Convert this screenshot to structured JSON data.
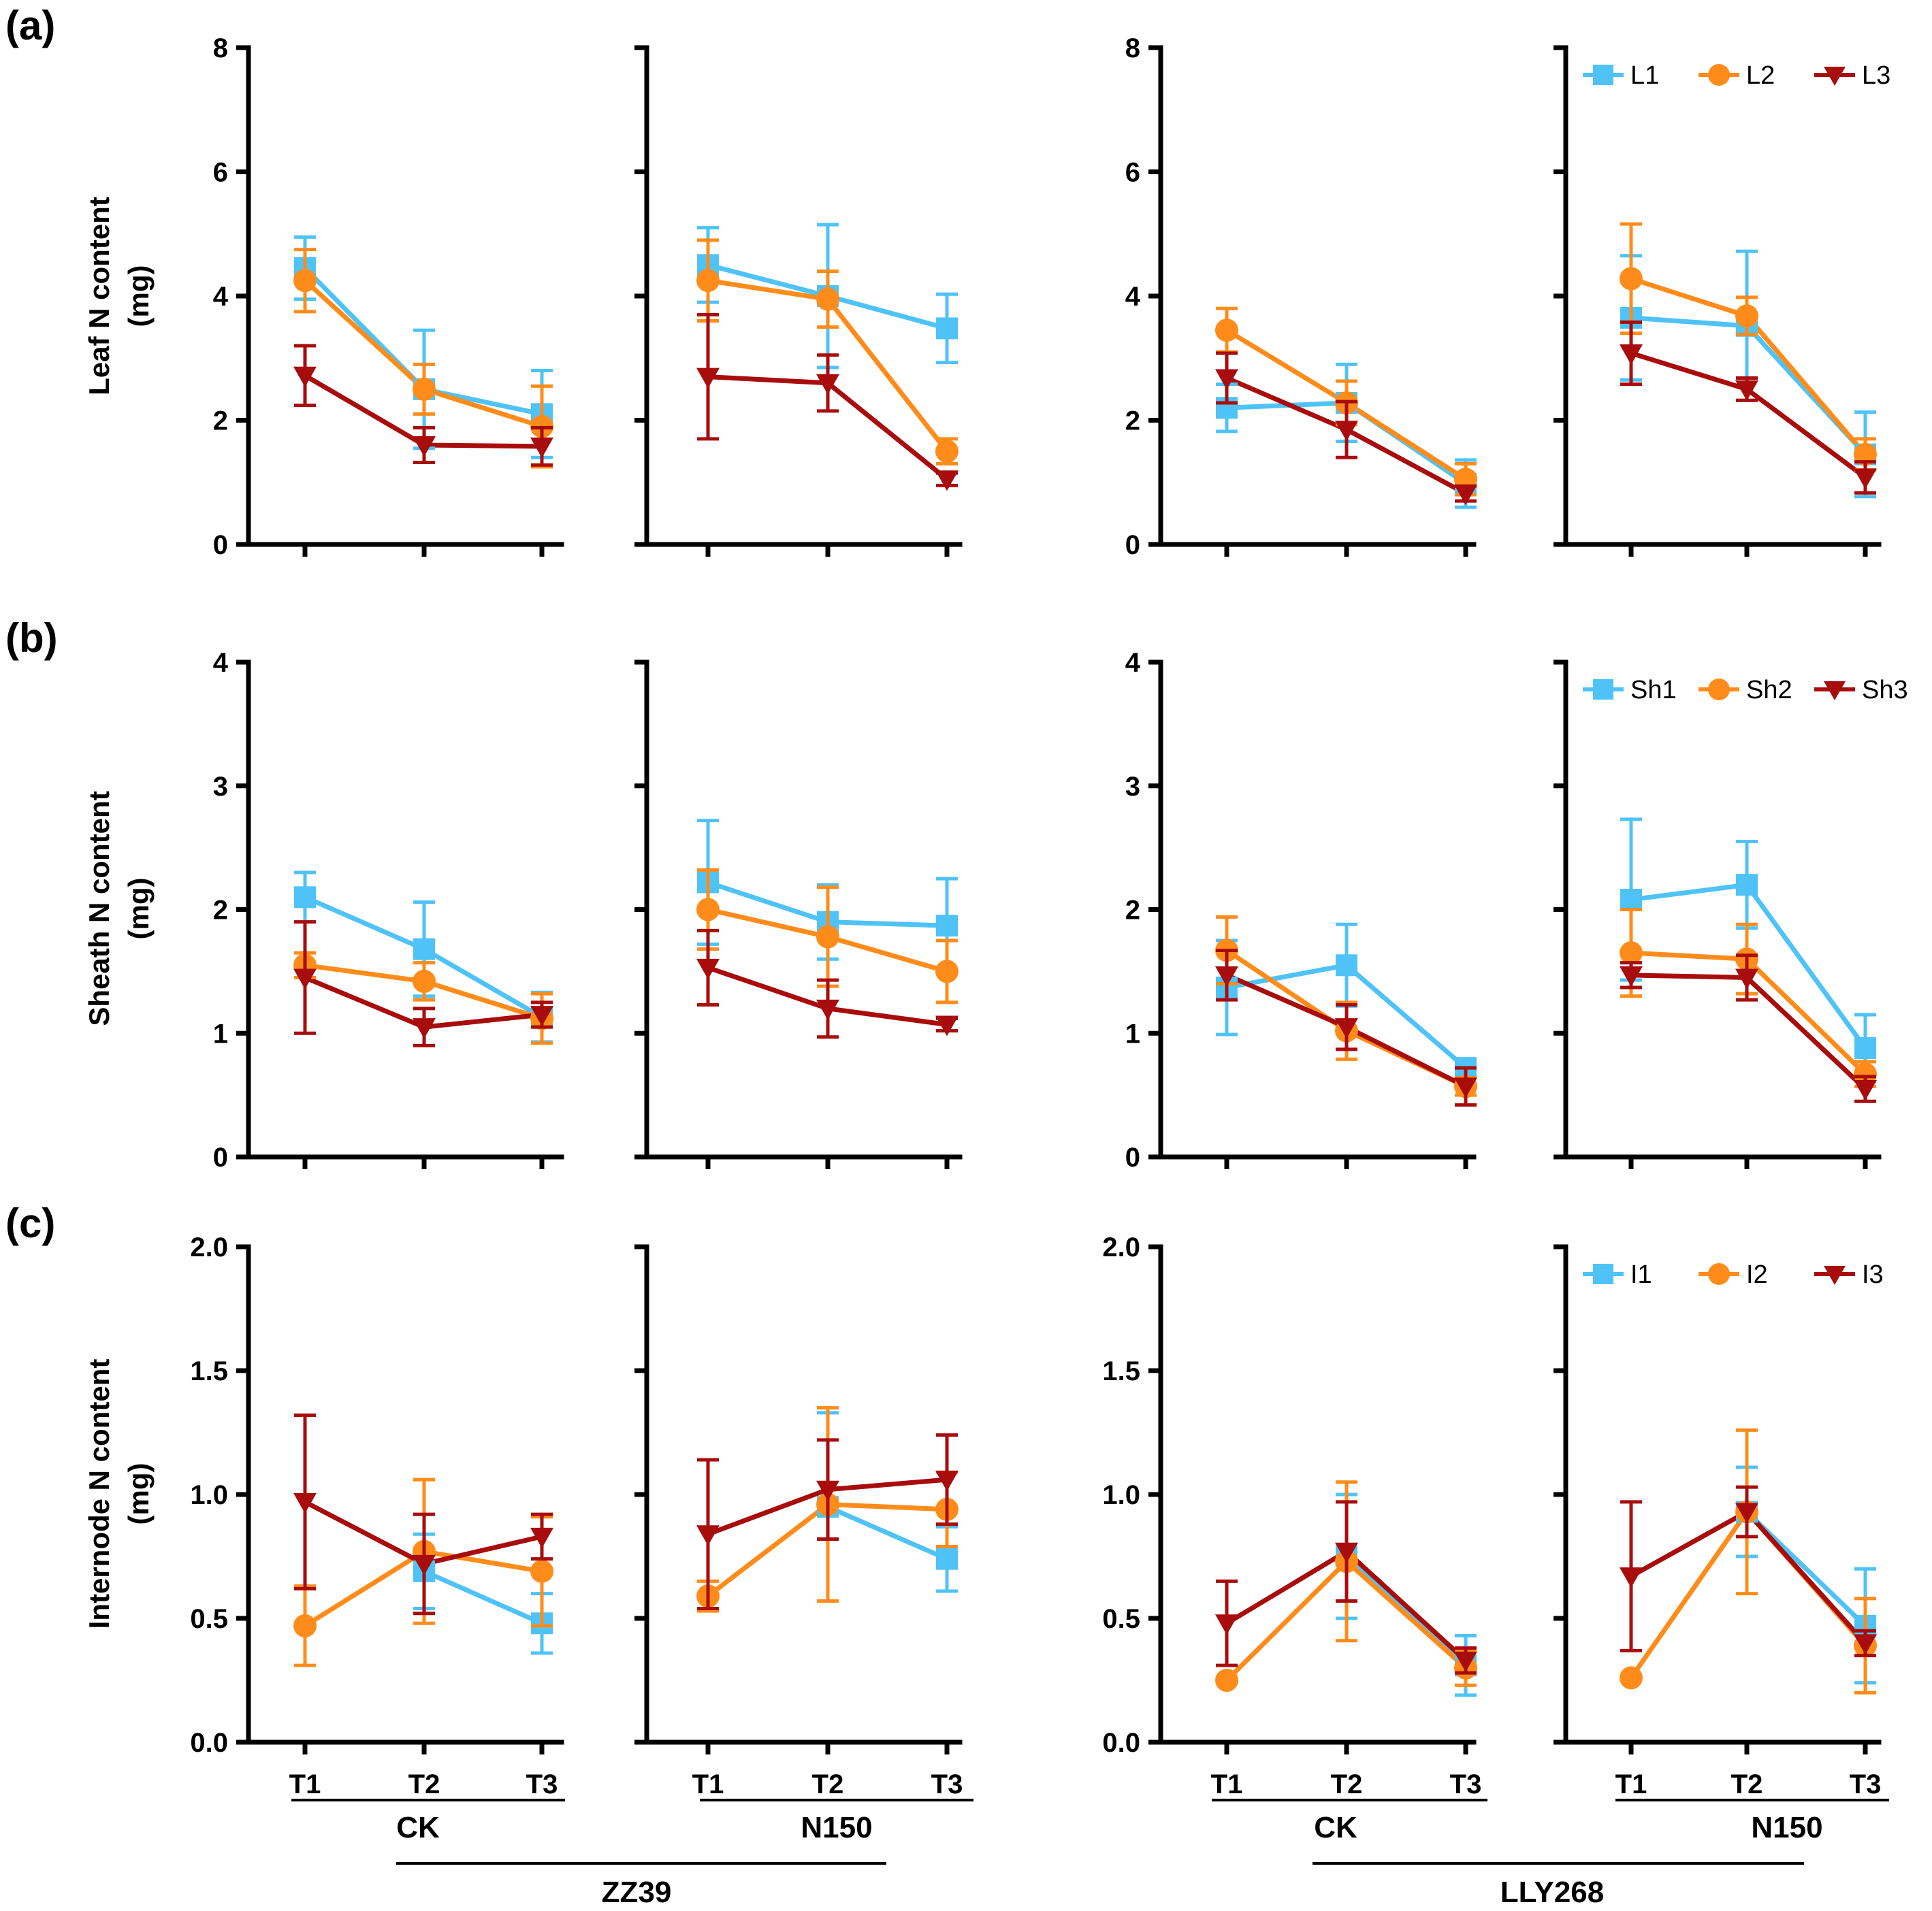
{
  "colors": {
    "s1": "#4FC3F7",
    "s2": "#FF8C1A",
    "s3": "#A80C0C",
    "axis": "#000000"
  },
  "x_categories": [
    "T1",
    "T2",
    "T3"
  ],
  "group_labels": {
    "treatments": [
      "CK",
      "N150",
      "CK",
      "N150"
    ],
    "cultivars": [
      "ZZ39",
      "LLY268"
    ]
  },
  "chart_data": [
    {
      "type": "line",
      "panel": "(a)",
      "ylabel_line1": "Leaf N content",
      "ylabel_line2": "(mg)",
      "ylim": [
        0,
        8
      ],
      "yticks": [
        0,
        2,
        4,
        6,
        8
      ],
      "yticklabels": [
        "0",
        "2",
        "4",
        "6",
        "8"
      ],
      "legend": [
        "L1",
        "L2",
        "L3"
      ],
      "legend_position": "top-right",
      "subplots": [
        {
          "cultivar": "ZZ39",
          "treatment": "CK",
          "series": [
            {
              "name": "L1",
              "values": [
                4.45,
                2.5,
                2.1
              ],
              "errors": [
                0.5,
                0.95,
                0.7
              ]
            },
            {
              "name": "L2",
              "values": [
                4.25,
                2.5,
                1.9
              ],
              "errors": [
                0.5,
                0.4,
                0.65
              ]
            },
            {
              "name": "L3",
              "values": [
                2.72,
                1.6,
                1.58
              ],
              "errors": [
                0.48,
                0.28,
                0.3
              ]
            }
          ]
        },
        {
          "cultivar": "ZZ39",
          "treatment": "N150",
          "series": [
            {
              "name": "L1",
              "values": [
                4.5,
                4.0,
                3.48
              ],
              "errors": [
                0.6,
                1.15,
                0.55
              ]
            },
            {
              "name": "L2",
              "values": [
                4.25,
                3.95,
                1.5
              ],
              "errors": [
                0.65,
                0.45,
                0.2
              ]
            },
            {
              "name": "L3",
              "values": [
                2.7,
                2.6,
                1.05
              ],
              "errors": [
                1.0,
                0.45,
                0.1
              ]
            }
          ]
        },
        {
          "cultivar": "LLY268",
          "treatment": "CK",
          "series": [
            {
              "name": "L1",
              "values": [
                2.2,
                2.28,
                0.98
              ],
              "errors": [
                0.38,
                0.62,
                0.38
              ]
            },
            {
              "name": "L2",
              "values": [
                3.45,
                2.28,
                1.05
              ],
              "errors": [
                0.35,
                0.35,
                0.25
              ]
            },
            {
              "name": "L3",
              "values": [
                2.68,
                1.85,
                0.82
              ],
              "errors": [
                0.4,
                0.45,
                0.12
              ]
            }
          ]
        },
        {
          "cultivar": "LLY268",
          "treatment": "N150",
          "series": [
            {
              "name": "L1",
              "values": [
                3.65,
                3.52,
                1.45
              ],
              "errors": [
                1.0,
                1.2,
                0.68
              ]
            },
            {
              "name": "L2",
              "values": [
                4.28,
                3.68,
                1.45
              ],
              "errors": [
                0.88,
                0.3,
                0.25
              ]
            },
            {
              "name": "L3",
              "values": [
                3.08,
                2.5,
                1.08
              ],
              "errors": [
                0.5,
                0.18,
                0.25
              ]
            }
          ]
        }
      ]
    },
    {
      "type": "line",
      "panel": "(b)",
      "ylabel_line1": "Sheath N content",
      "ylabel_line2": "(mg)",
      "ylim": [
        0,
        4
      ],
      "yticks": [
        0,
        1,
        2,
        3,
        4
      ],
      "yticklabels": [
        "0",
        "1",
        "2",
        "3",
        "4"
      ],
      "legend": [
        "Sh1",
        "Sh2",
        "Sh3"
      ],
      "legend_position": "top-right",
      "subplots": [
        {
          "cultivar": "ZZ39",
          "treatment": "CK",
          "series": [
            {
              "name": "Sh1",
              "values": [
                2.1,
                1.68,
                1.13
              ],
              "errors": [
                0.2,
                0.38,
                0.2
              ]
            },
            {
              "name": "Sh2",
              "values": [
                1.55,
                1.42,
                1.12
              ],
              "errors": [
                0.1,
                0.15,
                0.2
              ]
            },
            {
              "name": "Sh3",
              "values": [
                1.45,
                1.05,
                1.15
              ],
              "errors": [
                0.45,
                0.15,
                0.1
              ]
            }
          ]
        },
        {
          "cultivar": "ZZ39",
          "treatment": "N150",
          "series": [
            {
              "name": "Sh1",
              "values": [
                2.22,
                1.9,
                1.87
              ],
              "errors": [
                0.5,
                0.3,
                0.38
              ]
            },
            {
              "name": "Sh2",
              "values": [
                2.0,
                1.78,
                1.5
              ],
              "errors": [
                0.32,
                0.4,
                0.25
              ]
            },
            {
              "name": "Sh3",
              "values": [
                1.53,
                1.2,
                1.07
              ],
              "errors": [
                0.3,
                0.23,
                0.05
              ]
            }
          ]
        },
        {
          "cultivar": "LLY268",
          "treatment": "CK",
          "series": [
            {
              "name": "Sh1",
              "values": [
                1.37,
                1.55,
                0.72
              ],
              "errors": [
                0.38,
                0.33,
                0.07
              ]
            },
            {
              "name": "Sh2",
              "values": [
                1.67,
                1.02,
                0.57
              ],
              "errors": [
                0.27,
                0.23,
                0.07
              ]
            },
            {
              "name": "Sh3",
              "values": [
                1.47,
                1.05,
                0.57
              ],
              "errors": [
                0.2,
                0.18,
                0.15
              ]
            }
          ]
        },
        {
          "cultivar": "LLY268",
          "treatment": "N150",
          "series": [
            {
              "name": "Sh1",
              "values": [
                2.08,
                2.2,
                0.88
              ],
              "errors": [
                0.65,
                0.35,
                0.27
              ]
            },
            {
              "name": "Sh2",
              "values": [
                1.65,
                1.6,
                0.67
              ],
              "errors": [
                0.35,
                0.28,
                0.1
              ]
            },
            {
              "name": "Sh3",
              "values": [
                1.47,
                1.45,
                0.55
              ],
              "errors": [
                0.1,
                0.18,
                0.1
              ]
            }
          ]
        }
      ]
    },
    {
      "type": "line",
      "panel": "(c)",
      "ylabel_line1": "Internode N content",
      "ylabel_line2": "(mg)",
      "ylim": [
        0,
        2
      ],
      "yticks": [
        0,
        0.5,
        1,
        1.5,
        2
      ],
      "yticklabels": [
        "0.0",
        "0.5",
        "1.0",
        "1.5",
        "2.0"
      ],
      "legend": [
        "I1",
        "I2",
        "I3"
      ],
      "legend_position": "top-right",
      "subplots": [
        {
          "cultivar": "ZZ39",
          "treatment": "CK",
          "series": [
            {
              "name": "I1",
              "values": [
                null,
                0.69,
                0.48
              ],
              "errors": [
                0,
                0.15,
                0.12
              ]
            },
            {
              "name": "I2",
              "values": [
                0.47,
                0.77,
                0.69
              ],
              "errors": [
                0.16,
                0.29,
                0.22
              ]
            },
            {
              "name": "I3",
              "values": [
                0.97,
                0.72,
                0.83
              ],
              "errors": [
                0.35,
                0.2,
                0.09
              ]
            }
          ]
        },
        {
          "cultivar": "ZZ39",
          "treatment": "N150",
          "series": [
            {
              "name": "I1",
              "values": [
                null,
                0.95,
                0.74
              ],
              "errors": [
                0,
                0.38,
                0.13
              ]
            },
            {
              "name": "I2",
              "values": [
                0.59,
                0.96,
                0.94
              ],
              "errors": [
                0.06,
                0.39,
                0.15
              ]
            },
            {
              "name": "I3",
              "values": [
                0.84,
                1.02,
                1.06
              ],
              "errors": [
                0.3,
                0.2,
                0.18
              ]
            }
          ]
        },
        {
          "cultivar": "LLY268",
          "treatment": "CK",
          "series": [
            {
              "name": "I1",
              "values": [
                null,
                0.75,
                0.31
              ],
              "errors": [
                0,
                0.25,
                0.12
              ]
            },
            {
              "name": "I2",
              "values": [
                0.25,
                0.73,
                0.3
              ],
              "errors": [
                0,
                0.32,
                0.07
              ]
            },
            {
              "name": "I3",
              "values": [
                0.48,
                0.77,
                0.33
              ],
              "errors": [
                0.17,
                0.2,
                0.05
              ]
            }
          ]
        },
        {
          "cultivar": "LLY268",
          "treatment": "N150",
          "series": [
            {
              "name": "I1",
              "values": [
                null,
                0.93,
                0.47
              ],
              "errors": [
                0,
                0.18,
                0.23
              ]
            },
            {
              "name": "I2",
              "values": [
                0.26,
                0.93,
                0.39
              ],
              "errors": [
                0,
                0.33,
                0.19
              ]
            },
            {
              "name": "I3",
              "values": [
                0.67,
                0.93,
                0.4
              ],
              "errors": [
                0.3,
                0.1,
                0.05
              ]
            }
          ]
        }
      ]
    }
  ]
}
